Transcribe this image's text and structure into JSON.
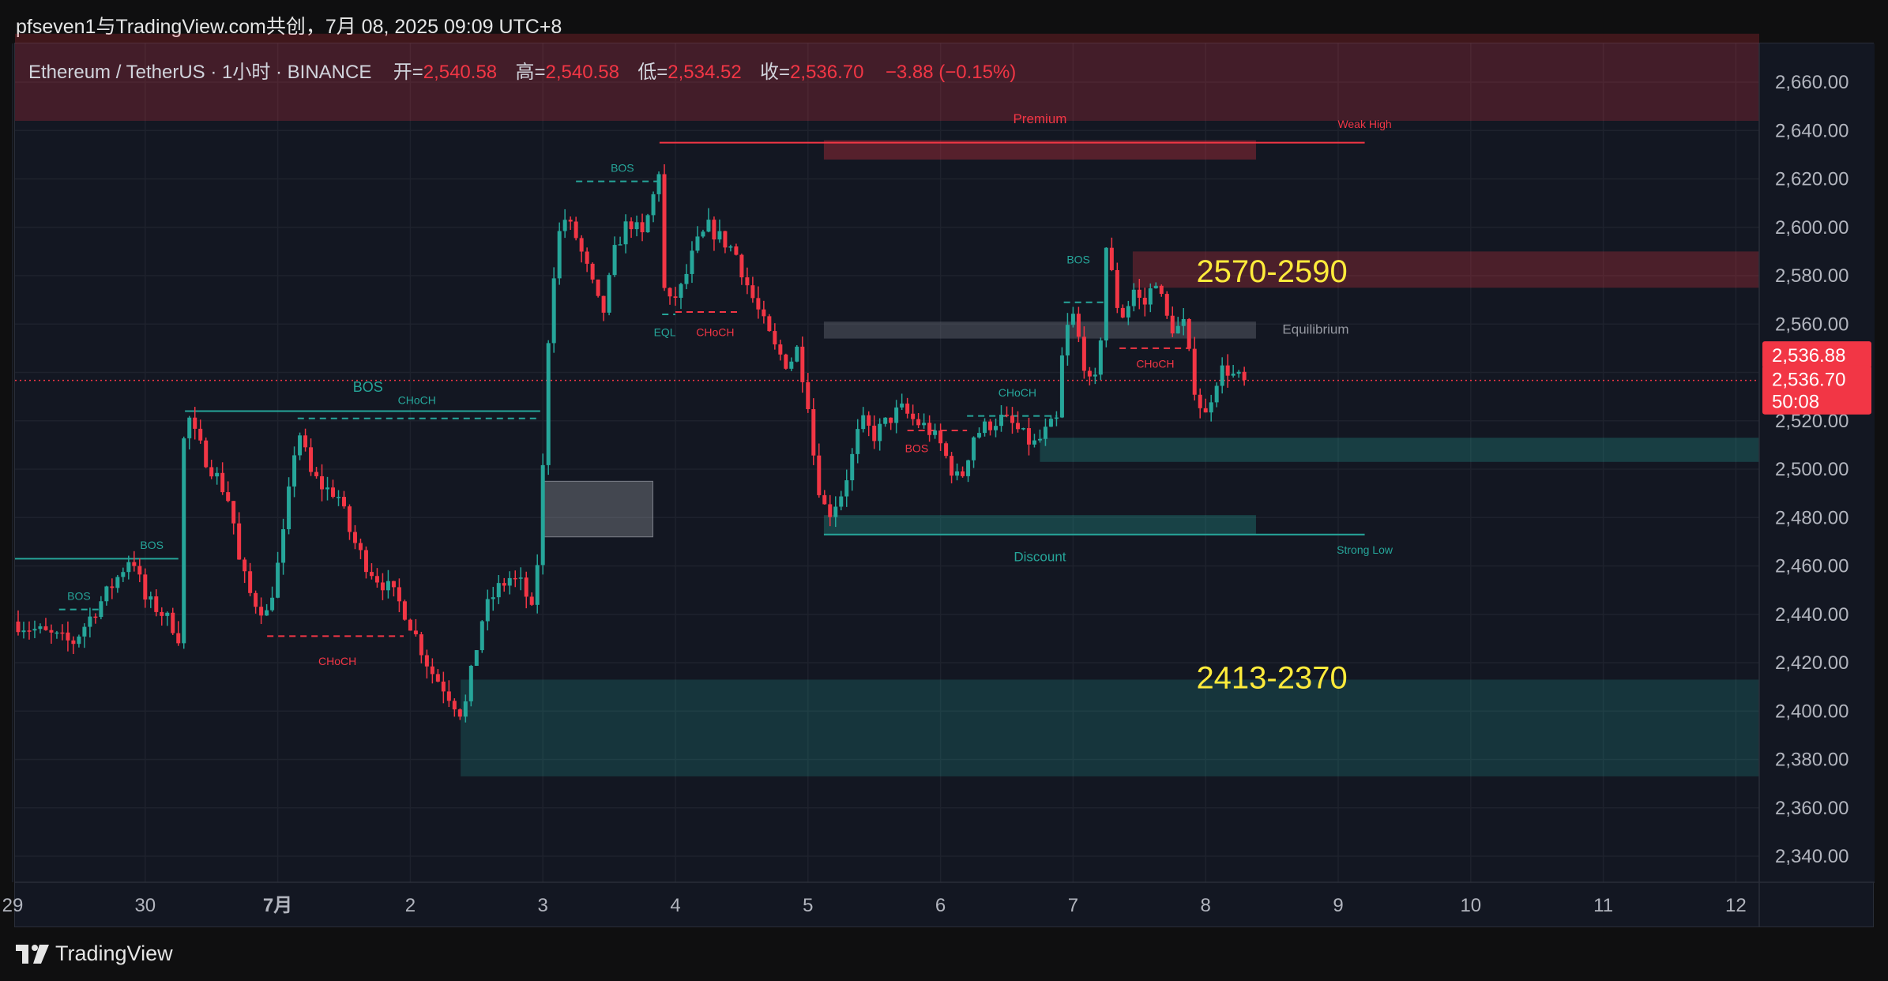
{
  "header": {
    "title": "pfseven1与TradingView.com共创，7月 08, 2025 09:09 UTC+8"
  },
  "legend": {
    "symbol": "Ethereum / TetherUS · 1小时 · BINANCE",
    "open_label": "开=",
    "open": "2,540.58",
    "high_label": "高=",
    "high": "2,540.58",
    "low_label": "低=",
    "low": "2,534.52",
    "close_label": "收=",
    "close": "2,536.70",
    "change": "−3.88 (−0.15%)"
  },
  "footer": {
    "brand": "TradingView",
    "logo_icon": "tradingview-logo-icon"
  },
  "colors": {
    "up": "#26a69a",
    "down": "#f23645",
    "background": "#131722",
    "grid": "#2a2e39",
    "annotation": "#ffeb3b"
  },
  "chart_data": {
    "type": "candlestick",
    "y_ticks": [
      "2,660.00",
      "2,640.00",
      "2,620.00",
      "2,600.00",
      "2,580.00",
      "2,560.00",
      "2,540.00",
      "2,520.00",
      "2,500.00",
      "2,480.00",
      "2,460.00",
      "2,440.00",
      "2,420.00",
      "2,400.00",
      "2,380.00",
      "2,360.00",
      "2,340.00"
    ],
    "ylim": [
      2330,
      2680
    ],
    "x_ticks": [
      {
        "label": "29",
        "day": 0
      },
      {
        "label": "30",
        "day": 1
      },
      {
        "label": "7月",
        "day": 2
      },
      {
        "label": "2",
        "day": 3
      },
      {
        "label": "3",
        "day": 4
      },
      {
        "label": "4",
        "day": 5
      },
      {
        "label": "5",
        "day": 6
      },
      {
        "label": "6",
        "day": 7
      },
      {
        "label": "7",
        "day": 8
      },
      {
        "label": "8",
        "day": 9
      },
      {
        "label": "9",
        "day": 10
      },
      {
        "label": "10",
        "day": 11
      },
      {
        "label": "11",
        "day": 12
      },
      {
        "label": "12",
        "day": 13
      }
    ],
    "price_labels": [
      {
        "text": "2,536.88",
        "price": 2547
      },
      {
        "text": "2,536.70",
        "price": 2537,
        "countdown": "50:08"
      }
    ],
    "current_price": 2536.7,
    "path": [
      [
        0.0,
        2437
      ],
      [
        0.25,
        2432
      ],
      [
        0.45,
        2428
      ],
      [
        0.6,
        2440
      ],
      [
        0.8,
        2456
      ],
      [
        0.9,
        2465
      ],
      [
        1.0,
        2446
      ],
      [
        1.1,
        2442
      ],
      [
        1.2,
        2436
      ],
      [
        1.25,
        2431
      ],
      [
        1.3,
        2528
      ],
      [
        1.35,
        2517
      ],
      [
        1.45,
        2505
      ],
      [
        1.55,
        2496
      ],
      [
        1.65,
        2485
      ],
      [
        1.7,
        2463
      ],
      [
        1.8,
        2447
      ],
      [
        1.92,
        2440
      ],
      [
        2.0,
        2460
      ],
      [
        2.05,
        2475
      ],
      [
        2.1,
        2497
      ],
      [
        2.15,
        2518
      ],
      [
        2.25,
        2498
      ],
      [
        2.35,
        2492
      ],
      [
        2.45,
        2490
      ],
      [
        2.55,
        2473
      ],
      [
        2.65,
        2462
      ],
      [
        2.75,
        2455
      ],
      [
        2.85,
        2450
      ],
      [
        2.95,
        2442
      ],
      [
        3.05,
        2430
      ],
      [
        3.15,
        2417
      ],
      [
        3.25,
        2410
      ],
      [
        3.35,
        2402
      ],
      [
        3.4,
        2398
      ],
      [
        3.45,
        2413
      ],
      [
        3.55,
        2440
      ],
      [
        3.65,
        2450
      ],
      [
        3.75,
        2455
      ],
      [
        3.85,
        2452
      ],
      [
        3.92,
        2440
      ],
      [
        3.97,
        2468
      ],
      [
        4.0,
        2500
      ],
      [
        4.05,
        2565
      ],
      [
        4.1,
        2590
      ],
      [
        4.15,
        2605
      ],
      [
        4.25,
        2596
      ],
      [
        4.35,
        2580
      ],
      [
        4.45,
        2563
      ],
      [
        4.55,
        2592
      ],
      [
        4.65,
        2603
      ],
      [
        4.75,
        2596
      ],
      [
        4.83,
        2612
      ],
      [
        4.88,
        2625
      ],
      [
        4.9,
        2577
      ],
      [
        4.95,
        2568
      ],
      [
        5.05,
        2575
      ],
      [
        5.15,
        2592
      ],
      [
        5.25,
        2600
      ],
      [
        5.35,
        2595
      ],
      [
        5.45,
        2590
      ],
      [
        5.55,
        2575
      ],
      [
        5.65,
        2562
      ],
      [
        5.75,
        2550
      ],
      [
        5.85,
        2543
      ],
      [
        5.92,
        2550
      ],
      [
        6.0,
        2528
      ],
      [
        6.05,
        2502
      ],
      [
        6.1,
        2488
      ],
      [
        6.15,
        2481
      ],
      [
        6.25,
        2490
      ],
      [
        6.32,
        2502
      ],
      [
        6.4,
        2520
      ],
      [
        6.5,
        2514
      ],
      [
        6.6,
        2520
      ],
      [
        6.7,
        2525
      ],
      [
        6.8,
        2520
      ],
      [
        6.9,
        2517
      ],
      [
        7.0,
        2510
      ],
      [
        7.1,
        2498
      ],
      [
        7.15,
        2495
      ],
      [
        7.25,
        2514
      ],
      [
        7.35,
        2518
      ],
      [
        7.45,
        2521
      ],
      [
        7.55,
        2518
      ],
      [
        7.65,
        2512
      ],
      [
        7.72,
        2510
      ],
      [
        7.8,
        2516
      ],
      [
        7.88,
        2520
      ],
      [
        7.93,
        2555
      ],
      [
        8.0,
        2563
      ],
      [
        8.05,
        2552
      ],
      [
        8.1,
        2540
      ],
      [
        8.15,
        2530
      ],
      [
        8.2,
        2548
      ],
      [
        8.25,
        2592
      ],
      [
        8.3,
        2578
      ],
      [
        8.35,
        2563
      ],
      [
        8.4,
        2565
      ],
      [
        8.45,
        2575
      ],
      [
        8.5,
        2570
      ],
      [
        8.55,
        2568
      ],
      [
        8.62,
        2580
      ],
      [
        8.7,
        2563
      ],
      [
        8.78,
        2556
      ],
      [
        8.82,
        2564
      ],
      [
        8.88,
        2545
      ],
      [
        8.93,
        2530
      ],
      [
        9.0,
        2522
      ],
      [
        9.05,
        2532
      ],
      [
        9.1,
        2540
      ],
      [
        9.15,
        2542
      ],
      [
        9.22,
        2538
      ],
      [
        9.3,
        2536.7
      ]
    ],
    "zones": [
      {
        "name": "premium-zone",
        "x1": -0.2,
        "x2": 13.2,
        "y1": 2644,
        "y2": 2680,
        "color": "#f23645",
        "opacity": 0.22
      },
      {
        "name": "weak-high-block",
        "x1": 6.12,
        "x2": 9.38,
        "y1": 2628,
        "y2": 2636,
        "color": "#f23645",
        "opacity": 0.3
      },
      {
        "name": "resistance-zone",
        "x1": 8.45,
        "x2": 13.2,
        "y1": 2575,
        "y2": 2590,
        "color": "#f23645",
        "opacity": 0.25
      },
      {
        "name": "equilibrium-zone",
        "x1": 6.12,
        "x2": 9.38,
        "y1": 2554,
        "y2": 2561,
        "color": "#787b86",
        "opacity": 0.35
      },
      {
        "name": "demand-zone-upper",
        "x1": 7.75,
        "x2": 13.2,
        "y1": 2503,
        "y2": 2513,
        "color": "#26a69a",
        "opacity": 0.28
      },
      {
        "name": "discount-zone",
        "x1": 6.12,
        "x2": 9.38,
        "y1": 2473,
        "y2": 2481,
        "color": "#26a69a",
        "opacity": 0.3
      },
      {
        "name": "support-zone",
        "x1": 3.38,
        "x2": 13.2,
        "y1": 2373,
        "y2": 2413,
        "color": "#26a69a",
        "opacity": 0.22
      },
      {
        "name": "gap-box",
        "x1": 4.0,
        "x2": 4.83,
        "y1": 2472,
        "y2": 2495,
        "color": "#b2b5be",
        "opacity": 0.3
      }
    ],
    "levels": [
      {
        "name": "weak-high-line",
        "x1": 4.88,
        "x2": 10.2,
        "y": 2635,
        "color": "#f23645",
        "dash": false
      },
      {
        "name": "strong-low-line",
        "x1": 6.12,
        "x2": 10.2,
        "y": 2473,
        "color": "#26a69a",
        "dash": false
      },
      {
        "name": "bos-line-left",
        "x1": -0.2,
        "x2": 1.25,
        "y": 2463,
        "color": "#26a69a",
        "dash": false
      },
      {
        "name": "bos-line-mid",
        "x1": 1.3,
        "x2": 3.98,
        "y": 2524,
        "color": "#26a69a",
        "dash": false
      },
      {
        "name": "choch-line-mid",
        "x1": 2.15,
        "x2": 3.98,
        "y": 2521,
        "color": "#26a69a",
        "dash": true
      },
      {
        "name": "bos-line-small",
        "x1": 0.35,
        "x2": 0.65,
        "y": 2442,
        "color": "#26a69a",
        "dash": true
      },
      {
        "name": "choch-line-low",
        "x1": 1.92,
        "x2": 2.95,
        "y": 2431,
        "color": "#f23645",
        "dash": true
      },
      {
        "name": "bos-line-top",
        "x1": 4.25,
        "x2": 4.88,
        "y": 2619,
        "color": "#26a69a",
        "dash": true
      },
      {
        "name": "eql-line",
        "x1": 4.9,
        "x2": 5.0,
        "y": 2564,
        "color": "#26a69a",
        "dash": true
      },
      {
        "name": "choch-line-4",
        "x1": 5.0,
        "x2": 5.5,
        "y": 2565,
        "color": "#f23645",
        "dash": true
      },
      {
        "name": "bos-line-6",
        "x1": 6.75,
        "x2": 7.2,
        "y": 2516,
        "color": "#f23645",
        "dash": true
      },
      {
        "name": "choch-line-6",
        "x1": 7.2,
        "x2": 7.88,
        "y": 2522,
        "color": "#26a69a",
        "dash": true
      },
      {
        "name": "bos-line-7",
        "x1": 7.93,
        "x2": 8.25,
        "y": 2569,
        "color": "#26a69a",
        "dash": true
      },
      {
        "name": "choch-line-7",
        "x1": 8.35,
        "x2": 8.88,
        "y": 2550,
        "color": "#f23645",
        "dash": true
      }
    ],
    "labels": [
      {
        "text": "Premium",
        "x": 7.75,
        "y": 2643,
        "color": "#f23645",
        "size": 17
      },
      {
        "text": "Weak High",
        "x": 10.2,
        "y": 2641,
        "color": "#f23645",
        "size": 14
      },
      {
        "text": "Equilibrium",
        "x": 9.83,
        "y": 2556,
        "color": "#9598a1",
        "size": 17
      },
      {
        "text": "Discount",
        "x": 7.75,
        "y": 2462,
        "color": "#26a69a",
        "size": 17
      },
      {
        "text": "Strong Low",
        "x": 10.2,
        "y": 2465,
        "color": "#26a69a",
        "size": 14
      },
      {
        "text": "BOS",
        "x": 1.05,
        "y": 2467,
        "color": "#26a69a",
        "size": 14
      },
      {
        "text": "BOS",
        "x": 0.5,
        "y": 2446,
        "color": "#26a69a",
        "size": 14
      },
      {
        "text": "BOS",
        "x": 2.68,
        "y": 2532,
        "color": "#26a69a",
        "size": 18
      },
      {
        "text": "CHoCH",
        "x": 3.05,
        "y": 2527,
        "color": "#26a69a",
        "size": 14
      },
      {
        "text": "CHoCH",
        "x": 2.45,
        "y": 2419,
        "color": "#f23645",
        "size": 14
      },
      {
        "text": "BOS",
        "x": 4.6,
        "y": 2623,
        "color": "#26a69a",
        "size": 14
      },
      {
        "text": "EQL",
        "x": 4.92,
        "y": 2555,
        "color": "#26a69a",
        "size": 14
      },
      {
        "text": "CHoCH",
        "x": 5.3,
        "y": 2555,
        "color": "#f23645",
        "size": 14
      },
      {
        "text": "BOS",
        "x": 6.82,
        "y": 2507,
        "color": "#f23645",
        "size": 14
      },
      {
        "text": "CHoCH",
        "x": 7.58,
        "y": 2530,
        "color": "#26a69a",
        "size": 14
      },
      {
        "text": "BOS",
        "x": 8.04,
        "y": 2585,
        "color": "#26a69a",
        "size": 14
      },
      {
        "text": "CHoCH",
        "x": 8.62,
        "y": 2542,
        "color": "#f23645",
        "size": 14
      }
    ],
    "annotations": [
      {
        "text": "2570-2590",
        "x": 9.5,
        "y": 2582,
        "color": "#ffeb3b",
        "size": 40
      },
      {
        "text": "2413-2370",
        "x": 9.5,
        "y": 2414,
        "color": "#ffeb3b",
        "size": 40
      }
    ]
  }
}
